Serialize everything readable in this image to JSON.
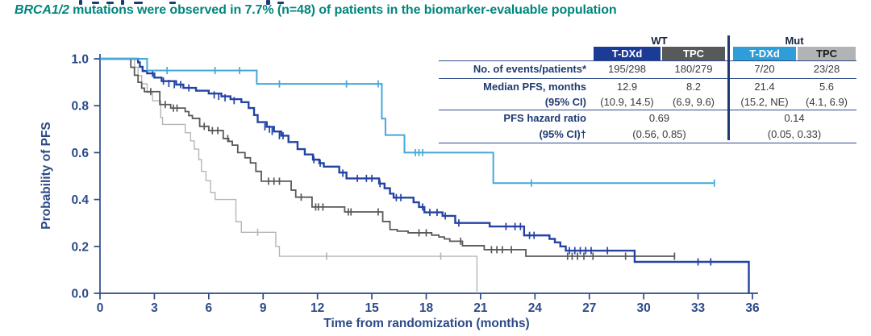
{
  "header": {
    "subtitle_italic": "BRCA1/2",
    "subtitle_rest": " mutations were observed in 7.7% (n=48) of patients in the biomarker-evaluable population",
    "subtitle_color": "#00857c"
  },
  "summary_table": {
    "group_headers": [
      {
        "label": "WT"
      },
      {
        "label": "Mut"
      }
    ],
    "columns": [
      {
        "label": "T-DXd",
        "bg": "#1c3b97",
        "color": "#ffffff"
      },
      {
        "label": "TPC",
        "bg": "#58595b",
        "color": "#ffffff"
      },
      {
        "label": "T-DXd",
        "bg": "#2f9dd8",
        "color": "#ffffff"
      },
      {
        "label": "TPC",
        "bg": "#b1b3b5",
        "color": "#1a1a1a"
      }
    ],
    "row_events": {
      "label": "No. of events/patients*",
      "values": [
        "195/298",
        "180/279",
        "7/20",
        "23/28"
      ]
    },
    "row_median": {
      "label_line1": "Median PFS, months",
      "label_line2": "(95% CI)",
      "values_line1": [
        "12.9",
        "8.2",
        "21.4",
        "5.6"
      ],
      "values_line2": [
        "(10.9, 14.5)",
        "(6.9, 9.6)",
        "(15.2, NE)",
        "(4.1, 6.9)"
      ]
    },
    "row_hr": {
      "label_line1": "PFS hazard ratio",
      "label_line2": "(95% CI)†",
      "wt": {
        "line1": "0.69",
        "line2": "(0.56, 0.85)"
      },
      "mut": {
        "line1": "0.14",
        "line2": "(0.05, 0.33)"
      }
    },
    "divider_color": "#1f3a70",
    "rule_color": "#2c4a87"
  },
  "chart_data": {
    "type": "line",
    "subtype": "kaplan-meier-step",
    "xlabel": "Time from randomization (months)",
    "ylabel": "Probability of PFS",
    "xlim": [
      0,
      36
    ],
    "ylim": [
      0.0,
      1.0
    ],
    "xticks": [
      0,
      3,
      6,
      9,
      12,
      15,
      18,
      21,
      24,
      27,
      30,
      33,
      36
    ],
    "yticks": [
      0,
      0.2,
      0.4,
      0.6,
      0.8,
      1
    ],
    "ytick_labels": [
      "0.0",
      "0.2",
      "0.4",
      "0.6",
      "0.8",
      "1.0"
    ],
    "grid": false,
    "legend": "none (groups identified in summary table)",
    "axis_color": "#2c4a87",
    "series": [
      {
        "id": "mut-tpc",
        "name": "Mut TPC",
        "color": "#b4b6b8",
        "width": 1.4,
        "start": [
          0,
          1.0
        ],
        "drops": [
          [
            1.9,
            0.964
          ],
          [
            2.1,
            0.929
          ],
          [
            2.3,
            0.893
          ],
          [
            2.6,
            0.857
          ],
          [
            2.9,
            0.821
          ],
          [
            3.35,
            0.75
          ],
          [
            3.45,
            0.72
          ],
          [
            4.7,
            0.685
          ],
          [
            5.0,
            0.65
          ],
          [
            5.2,
            0.615
          ],
          [
            5.45,
            0.57
          ],
          [
            5.6,
            0.52
          ],
          [
            5.85,
            0.48
          ],
          [
            6.1,
            0.43
          ],
          [
            6.35,
            0.4
          ],
          [
            7.5,
            0.305
          ],
          [
            7.8,
            0.26
          ],
          [
            9.7,
            0.2
          ],
          [
            9.9,
            0.158
          ],
          [
            20.8,
            0.0
          ]
        ],
        "end": 20.8,
        "censors": [
          [
            8.7,
            0.26
          ],
          [
            12.5,
            0.158
          ],
          [
            18.8,
            0.158
          ]
        ]
      },
      {
        "id": "wt-tpc",
        "name": "WT TPC",
        "color": "#58595b",
        "width": 1.8,
        "start": [
          0,
          1.0
        ],
        "drops": [
          [
            1.7,
            0.964
          ],
          [
            1.9,
            0.93
          ],
          [
            2.1,
            0.9
          ],
          [
            2.3,
            0.875
          ],
          [
            2.45,
            0.86
          ],
          [
            3.3,
            0.805
          ],
          [
            3.9,
            0.79
          ],
          [
            4.7,
            0.775
          ],
          [
            4.9,
            0.758
          ],
          [
            5.1,
            0.746
          ],
          [
            5.5,
            0.712
          ],
          [
            6.0,
            0.694
          ],
          [
            6.8,
            0.66
          ],
          [
            7.1,
            0.648
          ],
          [
            7.3,
            0.632
          ],
          [
            7.6,
            0.6
          ],
          [
            8.0,
            0.578
          ],
          [
            8.3,
            0.556
          ],
          [
            8.6,
            0.52
          ],
          [
            8.9,
            0.478
          ],
          [
            10.55,
            0.44
          ],
          [
            10.8,
            0.41
          ],
          [
            11.7,
            0.368
          ],
          [
            13.5,
            0.347
          ],
          [
            15.6,
            0.306
          ],
          [
            16.0,
            0.272
          ],
          [
            16.4,
            0.265
          ],
          [
            17.0,
            0.258
          ],
          [
            18.3,
            0.248
          ],
          [
            18.7,
            0.24
          ],
          [
            19.0,
            0.232
          ],
          [
            19.3,
            0.222
          ],
          [
            20.0,
            0.203
          ],
          [
            21.2,
            0.186
          ],
          [
            23.5,
            0.158
          ]
        ],
        "end": 31.7,
        "censors": [
          [
            2.8,
            0.86
          ],
          [
            3.6,
            0.805
          ],
          [
            4.05,
            0.79
          ],
          [
            4.25,
            0.79
          ],
          [
            5.75,
            0.712
          ],
          [
            6.2,
            0.694
          ],
          [
            6.5,
            0.694
          ],
          [
            7.05,
            0.66
          ],
          [
            9.3,
            0.478
          ],
          [
            9.6,
            0.478
          ],
          [
            9.9,
            0.478
          ],
          [
            11.1,
            0.41
          ],
          [
            11.9,
            0.368
          ],
          [
            12.05,
            0.368
          ],
          [
            12.3,
            0.368
          ],
          [
            13.7,
            0.347
          ],
          [
            13.85,
            0.347
          ],
          [
            15.35,
            0.347
          ],
          [
            17.6,
            0.258
          ],
          [
            18.0,
            0.258
          ],
          [
            19.9,
            0.222
          ],
          [
            21.6,
            0.186
          ],
          [
            21.9,
            0.186
          ],
          [
            22.2,
            0.186
          ],
          [
            22.7,
            0.186
          ],
          [
            25.8,
            0.158
          ],
          [
            26.05,
            0.158
          ],
          [
            26.35,
            0.158
          ],
          [
            26.7,
            0.158
          ],
          [
            27.2,
            0.158
          ],
          [
            29.0,
            0.158
          ],
          [
            31.7,
            0.158
          ]
        ]
      },
      {
        "id": "wt-tdxd",
        "name": "WT T-DXd",
        "color": "#2443a5",
        "width": 2.4,
        "start": [
          0,
          1.0
        ],
        "drops": [
          [
            2.1,
            0.985
          ],
          [
            2.2,
            0.966
          ],
          [
            2.35,
            0.948
          ],
          [
            2.6,
            0.938
          ],
          [
            3.0,
            0.92
          ],
          [
            3.4,
            0.905
          ],
          [
            4.2,
            0.89
          ],
          [
            4.6,
            0.876
          ],
          [
            5.3,
            0.864
          ],
          [
            6.0,
            0.852
          ],
          [
            6.7,
            0.84
          ],
          [
            7.2,
            0.828
          ],
          [
            7.8,
            0.815
          ],
          [
            8.2,
            0.79
          ],
          [
            8.5,
            0.76
          ],
          [
            8.7,
            0.73
          ],
          [
            9.2,
            0.71
          ],
          [
            9.6,
            0.69
          ],
          [
            10.0,
            0.672
          ],
          [
            10.4,
            0.645
          ],
          [
            10.9,
            0.615
          ],
          [
            11.3,
            0.592
          ],
          [
            11.75,
            0.57
          ],
          [
            12.1,
            0.555
          ],
          [
            12.35,
            0.54
          ],
          [
            13.2,
            0.515
          ],
          [
            13.6,
            0.49
          ],
          [
            15.4,
            0.468
          ],
          [
            15.7,
            0.448
          ],
          [
            16.0,
            0.425
          ],
          [
            16.2,
            0.408
          ],
          [
            17.3,
            0.388
          ],
          [
            17.6,
            0.368
          ],
          [
            17.9,
            0.345
          ],
          [
            18.9,
            0.33
          ],
          [
            19.6,
            0.3
          ],
          [
            21.5,
            0.285
          ],
          [
            23.4,
            0.247
          ],
          [
            24.8,
            0.232
          ],
          [
            25.1,
            0.217
          ],
          [
            25.4,
            0.2
          ],
          [
            25.7,
            0.182
          ],
          [
            29.5,
            0.134
          ],
          [
            35.8,
            0.0
          ]
        ],
        "end": 35.8,
        "censors": [
          [
            2.9,
            0.938
          ],
          [
            3.5,
            0.905
          ],
          [
            3.8,
            0.895
          ],
          [
            4.1,
            0.89
          ],
          [
            4.45,
            0.89
          ],
          [
            4.9,
            0.876
          ],
          [
            6.3,
            0.846
          ],
          [
            6.55,
            0.84
          ],
          [
            6.9,
            0.834
          ],
          [
            7.4,
            0.822
          ],
          [
            9.1,
            0.71
          ],
          [
            9.35,
            0.7
          ],
          [
            9.5,
            0.69
          ],
          [
            9.9,
            0.672
          ],
          [
            10.1,
            0.672
          ],
          [
            11.8,
            0.57
          ],
          [
            12.15,
            0.555
          ],
          [
            13.4,
            0.512
          ],
          [
            14.2,
            0.49
          ],
          [
            14.7,
            0.49
          ],
          [
            15.0,
            0.49
          ],
          [
            15.45,
            0.468
          ],
          [
            16.35,
            0.408
          ],
          [
            16.6,
            0.408
          ],
          [
            17.8,
            0.368
          ],
          [
            18.2,
            0.345
          ],
          [
            18.6,
            0.345
          ],
          [
            19.05,
            0.33
          ],
          [
            19.8,
            0.3
          ],
          [
            22.4,
            0.285
          ],
          [
            22.9,
            0.285
          ],
          [
            23.2,
            0.285
          ],
          [
            23.7,
            0.247
          ],
          [
            23.95,
            0.247
          ],
          [
            25.9,
            0.182
          ],
          [
            26.2,
            0.182
          ],
          [
            26.5,
            0.182
          ],
          [
            26.8,
            0.182
          ],
          [
            27.1,
            0.182
          ],
          [
            28.0,
            0.182
          ],
          [
            33.0,
            0.134
          ],
          [
            33.7,
            0.134
          ]
        ]
      },
      {
        "id": "mut-tdxd",
        "name": "Mut T-DXd",
        "color": "#44a8d8",
        "width": 2.0,
        "start": [
          0,
          1.0
        ],
        "drops": [
          [
            2.6,
            0.95
          ],
          [
            8.65,
            0.893
          ],
          [
            15.55,
            0.745
          ],
          [
            15.75,
            0.675
          ],
          [
            16.8,
            0.6
          ],
          [
            21.7,
            0.47
          ]
        ],
        "end": 33.9,
        "censors": [
          [
            3.7,
            0.95
          ],
          [
            6.35,
            0.95
          ],
          [
            7.7,
            0.95
          ],
          [
            9.9,
            0.893
          ],
          [
            13.6,
            0.893
          ],
          [
            15.35,
            0.893
          ],
          [
            17.4,
            0.6
          ],
          [
            17.6,
            0.6
          ],
          [
            17.8,
            0.6
          ],
          [
            23.8,
            0.47
          ],
          [
            33.9,
            0.47
          ]
        ]
      }
    ]
  }
}
